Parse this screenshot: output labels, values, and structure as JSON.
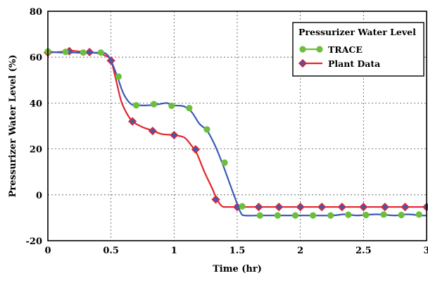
{
  "chart_data": {
    "type": "line",
    "title": "",
    "xlabel": "Time (hr)",
    "ylabel": "Pressurizer Water Level (%)",
    "xlim": [
      0,
      3
    ],
    "ylim": [
      -20,
      80
    ],
    "xticks": [
      "0",
      "0.5",
      "1",
      "1.5",
      "2",
      "2.5",
      "3"
    ],
    "yticks": [
      "-20",
      "0",
      "20",
      "40",
      "60",
      "80"
    ],
    "grid": true,
    "legend": {
      "title": "Pressurizer Water Level",
      "placement": "top-right"
    },
    "series": [
      {
        "name": "TRACE",
        "color": "#3b5bb5",
        "marker_color": "#6cbf3c",
        "marker": "circle",
        "line": [
          [
            0,
            62.5
          ],
          [
            0.1,
            62
          ],
          [
            0.2,
            62
          ],
          [
            0.3,
            61.8
          ],
          [
            0.4,
            62
          ],
          [
            0.46,
            61.5
          ],
          [
            0.5,
            58.5
          ],
          [
            0.55,
            51.5
          ],
          [
            0.6,
            44
          ],
          [
            0.66,
            39.5
          ],
          [
            0.72,
            39
          ],
          [
            0.8,
            39
          ],
          [
            0.88,
            39.5
          ],
          [
            0.94,
            40
          ],
          [
            1.0,
            39
          ],
          [
            1.08,
            38.5
          ],
          [
            1.14,
            36
          ],
          [
            1.2,
            31
          ],
          [
            1.26,
            28
          ],
          [
            1.32,
            22
          ],
          [
            1.38,
            14
          ],
          [
            1.44,
            5
          ],
          [
            1.5,
            -4
          ],
          [
            1.53,
            -8
          ],
          [
            1.56,
            -9
          ],
          [
            1.7,
            -9
          ],
          [
            2.0,
            -9
          ],
          [
            2.25,
            -9
          ],
          [
            2.35,
            -8.5
          ],
          [
            2.45,
            -9
          ],
          [
            2.6,
            -8.5
          ],
          [
            2.75,
            -9
          ],
          [
            2.85,
            -8.5
          ],
          [
            2.95,
            -9
          ],
          [
            3.0,
            -9
          ]
        ],
        "markers": [
          [
            0,
            62.5
          ],
          [
            0.14,
            62.3
          ],
          [
            0.28,
            62
          ],
          [
            0.42,
            62
          ],
          [
            0.56,
            51.5
          ],
          [
            0.7,
            39
          ],
          [
            0.84,
            39.5
          ],
          [
            0.98,
            38.8
          ],
          [
            1.12,
            37.8
          ],
          [
            1.26,
            28.5
          ],
          [
            1.4,
            14
          ],
          [
            1.54,
            -5
          ],
          [
            1.68,
            -9
          ],
          [
            1.82,
            -9
          ],
          [
            1.96,
            -9
          ],
          [
            2.1,
            -9
          ],
          [
            2.24,
            -9
          ],
          [
            2.38,
            -8.7
          ],
          [
            2.52,
            -8.8
          ],
          [
            2.66,
            -8.6
          ],
          [
            2.8,
            -8.8
          ],
          [
            2.94,
            -8.6
          ]
        ]
      },
      {
        "name": "Plant Data",
        "color": "#e3262e",
        "marker_color": "#3b5bb5",
        "marker": "diamond",
        "line": [
          [
            0,
            62
          ],
          [
            0.1,
            62.3
          ],
          [
            0.18,
            62.8
          ],
          [
            0.25,
            62.5
          ],
          [
            0.33,
            62
          ],
          [
            0.4,
            61.7
          ],
          [
            0.46,
            60.5
          ],
          [
            0.5,
            58.5
          ],
          [
            0.54,
            50
          ],
          [
            0.58,
            41
          ],
          [
            0.62,
            36
          ],
          [
            0.67,
            32
          ],
          [
            0.75,
            29.5
          ],
          [
            0.83,
            28
          ],
          [
            0.9,
            26.5
          ],
          [
            1.0,
            26
          ],
          [
            1.08,
            25
          ],
          [
            1.13,
            22
          ],
          [
            1.18,
            18
          ],
          [
            1.24,
            10
          ],
          [
            1.3,
            3
          ],
          [
            1.34,
            -2
          ],
          [
            1.38,
            -5
          ],
          [
            1.43,
            -5.3
          ],
          [
            1.6,
            -5.3
          ],
          [
            2.0,
            -5.3
          ],
          [
            2.5,
            -5.3
          ],
          [
            3.0,
            -5.3
          ]
        ],
        "markers": [
          [
            0,
            62
          ],
          [
            0.17,
            62.6
          ],
          [
            0.33,
            62.2
          ],
          [
            0.5,
            58.5
          ],
          [
            0.67,
            32
          ],
          [
            0.83,
            27.8
          ],
          [
            1.0,
            26
          ],
          [
            1.17,
            19.8
          ],
          [
            1.33,
            -2
          ],
          [
            1.5,
            -5.3
          ],
          [
            1.67,
            -5.3
          ],
          [
            1.83,
            -5.3
          ],
          [
            2.0,
            -5.3
          ],
          [
            2.17,
            -5.3
          ],
          [
            2.33,
            -5.3
          ],
          [
            2.5,
            -5.3
          ],
          [
            2.67,
            -5.3
          ],
          [
            2.83,
            -5.3
          ],
          [
            3.0,
            -5.3
          ]
        ]
      }
    ]
  }
}
